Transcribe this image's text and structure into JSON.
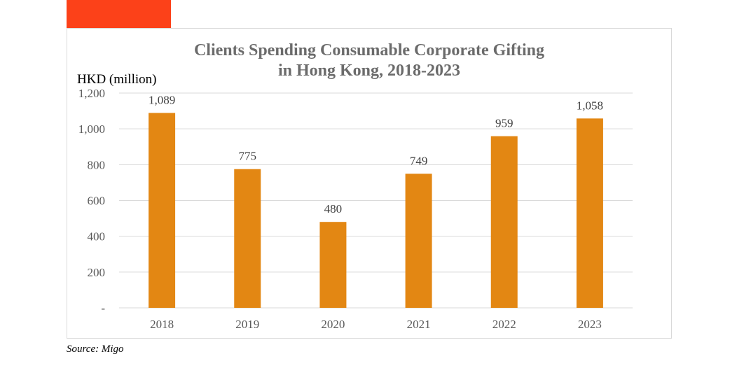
{
  "colors": {
    "accent": "#fc4119",
    "bar": "#e38713",
    "grid": "#d9d9d9"
  },
  "footer": {
    "source": "Source: Migo"
  },
  "chart_data": {
    "type": "bar",
    "title": "Clients Spending Consumable Corporate Gifting\nin Hong Kong, 2018-2023",
    "ylabel": "HKD (million)",
    "categories": [
      "2018",
      "2019",
      "2020",
      "2021",
      "2022",
      "2023"
    ],
    "values": [
      1089,
      775,
      480,
      749,
      959,
      1058
    ],
    "data_labels": [
      "1,089",
      "775",
      "480",
      "749",
      "959",
      "1,058"
    ],
    "ylim": [
      0,
      1200
    ],
    "yticks": [
      0,
      200,
      400,
      600,
      800,
      1000,
      1200
    ],
    "ytick_labels": [
      "-",
      "200",
      "400",
      "600",
      "800",
      "1,000",
      "1,200"
    ],
    "grid": true,
    "legend": "none"
  }
}
